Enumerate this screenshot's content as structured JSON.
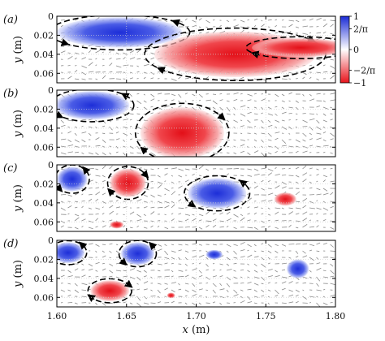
{
  "chart_data": {
    "type": "heatmap",
    "title": "",
    "xlabel_var": "x",
    "xlabel_unit": "(m)",
    "ylabel_var": "y",
    "ylabel_unit": "(m)",
    "xlim": [
      1.6,
      1.8
    ],
    "ylim": [
      0.07,
      0
    ],
    "x_ticks": [
      "1.60",
      "1.65",
      "1.70",
      "1.75",
      "1.80"
    ],
    "y_ticks": [
      "0",
      "0.02",
      "0.04",
      "0.06"
    ],
    "colorbar": {
      "ticks": [
        "1",
        "2/π",
        "0",
        "−2/π",
        "−1"
      ],
      "colors": [
        "#1a2bd6",
        "#ffffff",
        "#e8141c"
      ]
    },
    "panels": [
      {
        "label": "(a)",
        "vortices": [
          {
            "x": 1.645,
            "y": 0.017,
            "rx": 0.045,
            "ry": 0.016,
            "sign": 1
          },
          {
            "x": 1.728,
            "y": 0.04,
            "rx": 0.058,
            "ry": 0.024,
            "sign": -1
          },
          {
            "x": 1.775,
            "y": 0.033,
            "rx": 0.035,
            "ry": 0.01,
            "sign": -1
          }
        ]
      },
      {
        "label": "(b)",
        "vortices": [
          {
            "x": 1.625,
            "y": 0.016,
            "rx": 0.027,
            "ry": 0.015,
            "sign": 1
          },
          {
            "x": 1.69,
            "y": 0.045,
            "rx": 0.03,
            "ry": 0.027,
            "sign": -1
          }
        ]
      },
      {
        "label": "(c)",
        "vortices": [
          {
            "x": 1.611,
            "y": 0.015,
            "rx": 0.011,
            "ry": 0.013,
            "sign": 1
          },
          {
            "x": 1.651,
            "y": 0.019,
            "rx": 0.013,
            "ry": 0.015,
            "sign": -1
          },
          {
            "x": 1.715,
            "y": 0.03,
            "rx": 0.021,
            "ry": 0.016,
            "sign": 1
          },
          {
            "x": 1.764,
            "y": 0.036,
            "rx": 0.008,
            "ry": 0.007,
            "sign": -1
          },
          {
            "x": 1.643,
            "y": 0.063,
            "rx": 0.005,
            "ry": 0.004,
            "sign": -1
          }
        ]
      },
      {
        "label": "(d)",
        "vortices": [
          {
            "x": 1.608,
            "y": 0.013,
            "rx": 0.012,
            "ry": 0.011,
            "sign": 1
          },
          {
            "x": 1.658,
            "y": 0.014,
            "rx": 0.012,
            "ry": 0.012,
            "sign": 1
          },
          {
            "x": 1.638,
            "y": 0.053,
            "rx": 0.014,
            "ry": 0.011,
            "sign": -1
          },
          {
            "x": 1.713,
            "y": 0.015,
            "rx": 0.006,
            "ry": 0.005,
            "sign": 1
          },
          {
            "x": 1.773,
            "y": 0.03,
            "rx": 0.008,
            "ry": 0.01,
            "sign": 1
          },
          {
            "x": 1.682,
            "y": 0.058,
            "rx": 0.003,
            "ry": 0.003,
            "sign": -1
          }
        ]
      }
    ]
  }
}
